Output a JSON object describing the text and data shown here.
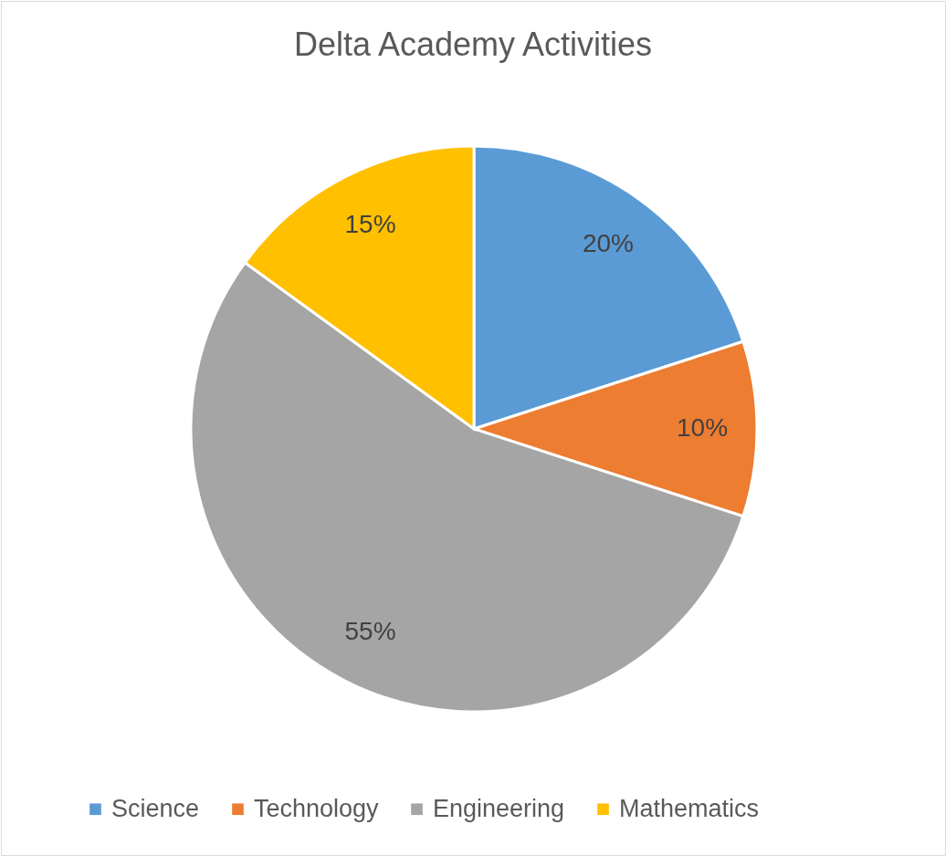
{
  "chart_data": {
    "type": "pie",
    "title": "Delta Academy Activities",
    "categories": [
      "Science",
      "Technology",
      "Engineering",
      "Mathematics"
    ],
    "values": [
      20,
      10,
      55,
      15
    ],
    "value_labels": [
      "20%",
      "10%",
      "55%",
      "15%"
    ],
    "colors": [
      "#5b9bd5",
      "#ed7d31",
      "#a5a5a5",
      "#ffc000"
    ],
    "legend": "bottom"
  }
}
